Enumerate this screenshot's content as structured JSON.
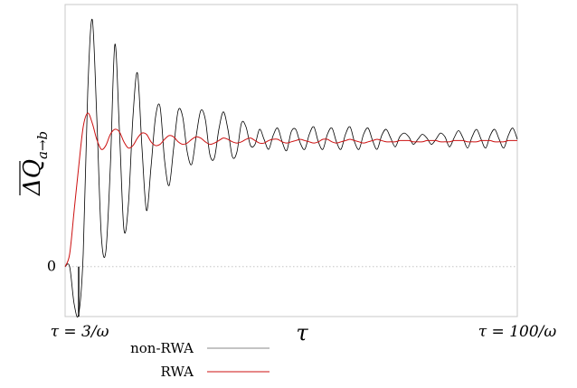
{
  "chart_data": {
    "type": "line",
    "title": "",
    "xlabel": "τ",
    "ylabel": "ΔQ̄_{a→b}",
    "ylabel_parts": {
      "main": "ΔQ",
      "sub": "a→b"
    },
    "x_tick_labels": {
      "left": "τ = 3/ω",
      "right": "τ = 100/ω"
    },
    "y_tick_labels": [
      "0"
    ],
    "xlim": [
      0,
      100
    ],
    "ylim": [
      -0.4,
      2.1
    ],
    "zero_reference": {
      "y": 0,
      "style": "dotted",
      "color": "#bbbbbb"
    },
    "marker": {
      "x": 3,
      "description": "vertical tick at τ = 3/ω"
    },
    "grid": false,
    "legend": "bottom-left, below axis",
    "series": [
      {
        "name": "non-RWA",
        "color": "#000000",
        "x": [
          0,
          1,
          2,
          3,
          4,
          5,
          6,
          7,
          8,
          9,
          10,
          11,
          12,
          13,
          14,
          15,
          16,
          17,
          18,
          19,
          20,
          21,
          22,
          23,
          24,
          25,
          26,
          27,
          28,
          29,
          30,
          31,
          32,
          33,
          34,
          35,
          36,
          37,
          38,
          39,
          40,
          41,
          42,
          43,
          44,
          45,
          46,
          47,
          48,
          49,
          50,
          51,
          52,
          53,
          54,
          55,
          56,
          57,
          58,
          59,
          60,
          61,
          62,
          63,
          64,
          65,
          66,
          67,
          68,
          69,
          70,
          71,
          72,
          73,
          74,
          75,
          76,
          77,
          78,
          79,
          80,
          81,
          82,
          83,
          84,
          85,
          86,
          87,
          88,
          89,
          90,
          91,
          92,
          93,
          94,
          95,
          96,
          97,
          98,
          99,
          100
        ],
        "y": [
          0.0,
          0.0,
          -0.3,
          -0.38,
          0.1,
          1.4,
          1.98,
          1.2,
          0.25,
          0.12,
          0.8,
          1.78,
          1.1,
          0.3,
          0.5,
          1.2,
          1.55,
          0.95,
          0.45,
          0.8,
          1.2,
          1.28,
          0.85,
          0.65,
          0.95,
          1.25,
          1.2,
          0.92,
          0.82,
          1.05,
          1.25,
          1.18,
          0.9,
          0.87,
          1.1,
          1.24,
          1.1,
          0.88,
          0.92,
          1.15,
          1.12,
          0.97,
          0.98,
          1.1,
          1.02,
          0.94,
          1.05,
          1.11,
          1.0,
          0.93,
          1.08,
          1.1,
          0.99,
          0.94,
          1.06,
          1.12,
          1.0,
          0.94,
          1.06,
          1.11,
          1.0,
          0.94,
          1.06,
          1.12,
          1.0,
          0.94,
          1.06,
          1.11,
          1.01,
          0.94,
          1.05,
          1.1,
          1.03,
          0.96,
          1.04,
          1.07,
          1.04,
          0.98,
          1.02,
          1.06,
          1.03,
          0.98,
          1.02,
          1.07,
          1.04,
          0.96,
          1.03,
          1.09,
          1.03,
          0.95,
          1.04,
          1.1,
          1.02,
          0.95,
          1.05,
          1.1,
          1.02,
          0.95,
          1.05,
          1.11,
          1.02
        ]
      },
      {
        "name": "RWA",
        "color": "#cc1111",
        "x": [
          0,
          1,
          2,
          3,
          4,
          5,
          6,
          7,
          8,
          9,
          10,
          11,
          12,
          13,
          14,
          15,
          16,
          17,
          18,
          19,
          20,
          21,
          22,
          23,
          24,
          25,
          26,
          27,
          28,
          29,
          30,
          31,
          32,
          33,
          34,
          35,
          36,
          37,
          38,
          39,
          40,
          41,
          42,
          43,
          44,
          45,
          46,
          47,
          48,
          49,
          50,
          51,
          52,
          53,
          54,
          55,
          56,
          57,
          58,
          59,
          60,
          61,
          62,
          63,
          64,
          65,
          66,
          67,
          68,
          69,
          70,
          71,
          72,
          73,
          74,
          75,
          76,
          77,
          78,
          79,
          80,
          81,
          82,
          83,
          84,
          85,
          86,
          87,
          88,
          89,
          90,
          91,
          92,
          93,
          94,
          95,
          96,
          97,
          98,
          99,
          100
        ],
        "y": [
          0.0,
          0.1,
          0.45,
          0.8,
          1.12,
          1.23,
          1.15,
          1.02,
          0.94,
          0.97,
          1.06,
          1.1,
          1.08,
          1.0,
          0.95,
          0.97,
          1.03,
          1.07,
          1.06,
          1.0,
          0.97,
          0.98,
          1.02,
          1.05,
          1.04,
          1.0,
          0.98,
          0.99,
          1.02,
          1.04,
          1.03,
          1.0,
          0.98,
          0.99,
          1.01,
          1.03,
          1.02,
          1.0,
          0.99,
          1.0,
          1.02,
          1.03,
          1.01,
          0.99,
          0.99,
          1.01,
          1.02,
          1.02,
          1.0,
          0.99,
          1.0,
          1.01,
          1.02,
          1.01,
          1.0,
          0.99,
          1.0,
          1.02,
          1.02,
          1.0,
          0.99,
          1.0,
          1.01,
          1.02,
          1.01,
          1.0,
          0.99,
          1.0,
          1.01,
          1.02,
          1.01,
          1.0,
          1.0,
          1.0,
          1.01,
          1.01,
          1.01,
          1.0,
          1.0,
          1.0,
          1.01,
          1.01,
          1.01,
          1.0,
          1.0,
          1.0,
          1.01,
          1.01,
          1.01,
          1.0,
          1.0,
          1.0,
          1.01,
          1.01,
          1.01,
          1.0,
          1.0,
          1.0,
          1.01,
          1.01,
          1.01
        ]
      }
    ]
  }
}
